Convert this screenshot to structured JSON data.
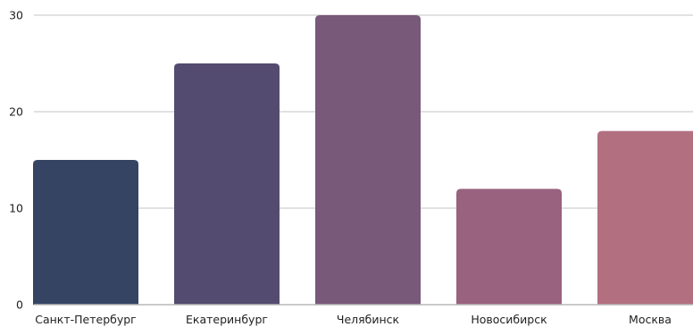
{
  "chart_data": {
    "type": "bar",
    "title": "",
    "xlabel": "",
    "ylabel": "",
    "categories": [
      "Санкт-Петербург",
      "Екатеринбург",
      "Челябинск",
      "Новосибирск",
      "Москва"
    ],
    "values": [
      15,
      25,
      30,
      12,
      18
    ],
    "colors": [
      "#354463",
      "#544b70",
      "#785979",
      "#99627f",
      "#b26f80"
    ],
    "ylim": [
      0,
      30
    ],
    "yticks": [
      0,
      10,
      20,
      30
    ],
    "grid": true,
    "legend": "none"
  }
}
